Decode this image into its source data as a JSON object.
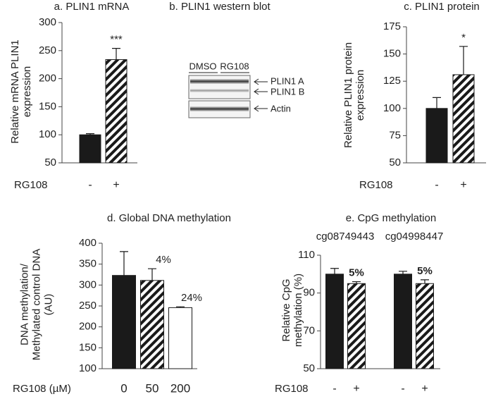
{
  "chart_data": [
    {
      "type": "bar",
      "title": "a. PLIN1 mRNA",
      "y_label": "Relative mRNA PLIN1 expression",
      "x_label": "RG108",
      "categories": [
        "-",
        "+"
      ],
      "values": [
        100,
        234
      ],
      "errors": [
        2,
        20
      ],
      "fills": [
        "solid",
        "hatched"
      ],
      "color": "#1a1a1a",
      "notes": [
        null,
        "***"
      ],
      "ylim": [
        50,
        300
      ],
      "yticks": [
        50,
        100,
        150,
        200,
        250,
        300
      ]
    },
    {
      "type": "bar",
      "title": "c. PLIN1 protein",
      "y_label": "Relative PLIN1 protein expression",
      "x_label": "RG108",
      "categories": [
        "-",
        "+"
      ],
      "values": [
        100,
        131
      ],
      "errors": [
        10,
        26
      ],
      "fills": [
        "solid",
        "hatched"
      ],
      "color": "#1a1a1a",
      "notes": [
        null,
        "*"
      ],
      "ylim": [
        50,
        175
      ],
      "yticks": [
        50,
        75,
        100,
        125,
        150,
        175
      ]
    },
    {
      "type": "bar",
      "title": "d. Global DNA methylation",
      "y_label": "DNA methylation/ Methylated control DNA (AU)",
      "x_label": "RG108 (µM)",
      "categories": [
        "0",
        "50",
        "200"
      ],
      "values": [
        323,
        311,
        246
      ],
      "errors": [
        57,
        28,
        2
      ],
      "fills": [
        "solid",
        "hatched",
        "empty"
      ],
      "color": "#1a1a1a",
      "notes": [
        null,
        "4%",
        "24%"
      ],
      "ylim": [
        100,
        400
      ],
      "yticks": [
        100,
        150,
        200,
        250,
        300,
        350,
        400
      ]
    },
    {
      "type": "bar",
      "title": "e. CpG methylation",
      "y_label": "Relative CpG methylation (%)",
      "x_label": "RG108",
      "groups": [
        "cg08749443",
        "cg04998447"
      ],
      "categories": [
        "-",
        "+",
        "-",
        "+"
      ],
      "values": [
        100,
        95,
        100,
        95
      ],
      "errors": [
        3,
        1,
        1.5,
        2
      ],
      "fills": [
        "solid",
        "hatched",
        "solid",
        "hatched"
      ],
      "color": "#1a1a1a",
      "notes": [
        null,
        "5%",
        null,
        "5%"
      ],
      "ylim": [
        50,
        110
      ],
      "yticks": [
        50,
        70,
        90,
        110
      ]
    }
  ],
  "western_blot": {
    "title": "b. PLIN1 western blot",
    "lanes": [
      "DMSO",
      "RG108"
    ],
    "bands": [
      "PLIN1 A",
      "PLIN1 B",
      "Actin"
    ]
  }
}
